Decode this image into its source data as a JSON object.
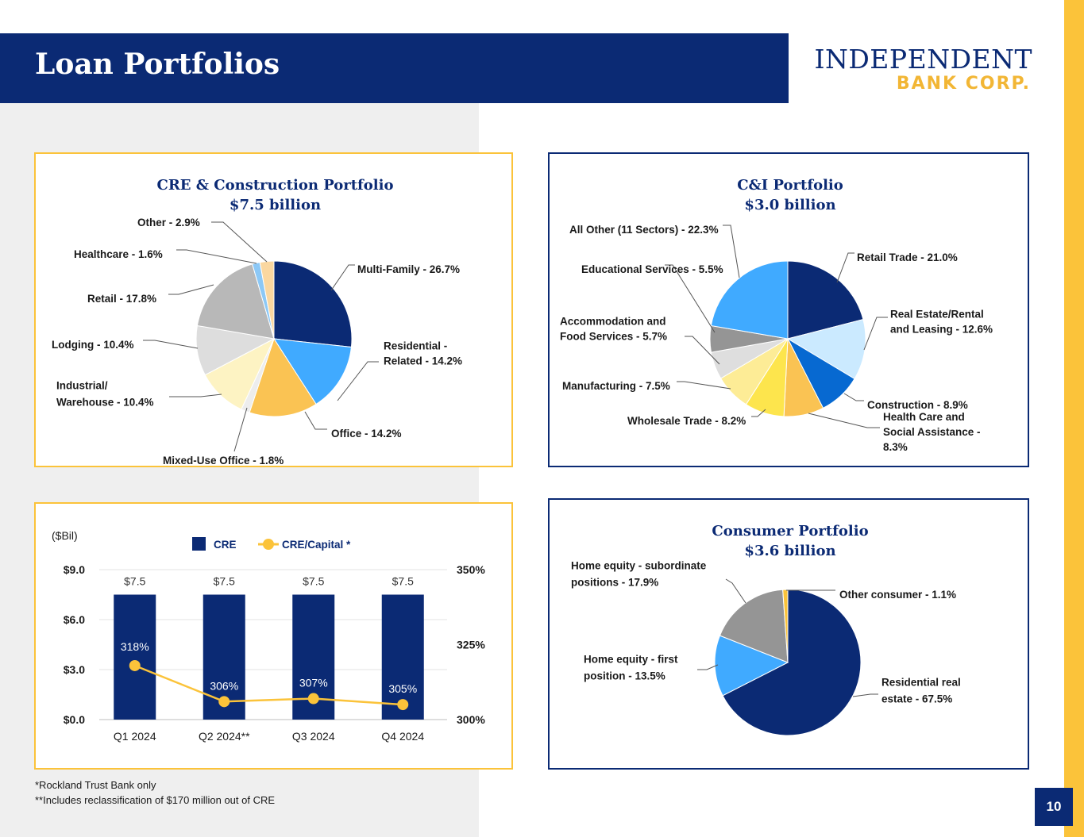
{
  "header": {
    "title": "Loan Portfolios"
  },
  "logo": {
    "line1": "INDEPENDENT",
    "line2": "BANK CORP."
  },
  "colors": {
    "navy": "#0b2a74",
    "gold": "#fbc33a"
  },
  "chart_data": [
    {
      "type": "pie",
      "title": "CRE & Construction Portfolio",
      "subtitle": "$7.5 billion",
      "slices": [
        {
          "label": "Multi-Family - 26.7%",
          "value": 26.7,
          "color": "#0b2a74"
        },
        {
          "label": "Residential - Related - 14.2%",
          "lines": [
            "Residential -",
            "Related - 14.2%"
          ],
          "value": 14.2,
          "color": "#40aaff"
        },
        {
          "label": "Office - 14.2%",
          "value": 14.2,
          "color": "#fac353"
        },
        {
          "label": "Mixed-Use Office - 1.8%",
          "value": 1.8,
          "color": "#ededed"
        },
        {
          "label": "Industrial/ Warehouse - 10.4%",
          "lines": [
            "Industrial/",
            "Warehouse - 10.4%"
          ],
          "value": 10.4,
          "color": "#fdf3c3"
        },
        {
          "label": "Lodging - 10.4%",
          "value": 10.4,
          "color": "#dddddd"
        },
        {
          "label": "Retail - 17.8%",
          "value": 17.8,
          "color": "#b8b8b8"
        },
        {
          "label": "Healthcare - 1.6%",
          "value": 1.6,
          "color": "#8cc8f6"
        },
        {
          "label": "Other - 2.9%",
          "value": 2.9,
          "color": "#fad7a0"
        }
      ]
    },
    {
      "type": "pie",
      "title": "C&I Portfolio",
      "subtitle": "$3.0 billion",
      "slices": [
        {
          "label": "Retail Trade - 21.0%",
          "value": 21.0,
          "color": "#0b2a74"
        },
        {
          "label": "Real Estate/Rental and Leasing - 12.6%",
          "lines": [
            "Real Estate/Rental",
            "and Leasing - 12.6%"
          ],
          "value": 12.6,
          "color": "#cbeaff"
        },
        {
          "label": "Construction - 8.9%",
          "value": 8.9,
          "color": "#0769d1"
        },
        {
          "label": "Health Care and Social Assistance - 8.3%",
          "lines": [
            "Health Care and",
            "Social Assistance -",
            "8.3%"
          ],
          "value": 8.3,
          "color": "#fac353"
        },
        {
          "label": "Wholesale Trade - 8.2%",
          "value": 8.2,
          "color": "#fde54d"
        },
        {
          "label": "Manufacturing - 7.5%",
          "value": 7.5,
          "color": "#fdec96"
        },
        {
          "label": "Accommodation and Food Services - 5.7%",
          "lines": [
            "Accommodation and",
            "Food Services - 5.7%"
          ],
          "value": 5.7,
          "color": "#dedede"
        },
        {
          "label": "Educational Services - 5.5%",
          "value": 5.5,
          "color": "#959595"
        },
        {
          "label": "All Other (11 Sectors) - 22.3%",
          "value": 22.3,
          "color": "#40aaff"
        }
      ]
    },
    {
      "type": "bar",
      "ylabel": "($Bil)",
      "categories": [
        "Q1 2024",
        "Q2 2024**",
        "Q3 2024",
        "Q4 2024"
      ],
      "series": [
        {
          "name": "CRE",
          "type": "bar",
          "axis": "left",
          "values": [
            7.5,
            7.5,
            7.5,
            7.5
          ],
          "labels": [
            "$7.5",
            "$7.5",
            "$7.5",
            "$7.5"
          ],
          "color": "#0b2a74"
        },
        {
          "name": "CRE/Capital *",
          "type": "line",
          "axis": "right",
          "values": [
            318,
            306,
            307,
            305
          ],
          "labels": [
            "318%",
            "306%",
            "307%",
            "305%"
          ],
          "color": "#fbc33a"
        }
      ],
      "ylim": [
        0,
        9
      ],
      "yticks": [
        "$0.0",
        "$3.0",
        "$6.0",
        "$9.0"
      ],
      "y2lim": [
        300,
        350
      ],
      "y2ticks": [
        "300%",
        "325%",
        "350%"
      ],
      "grid": true,
      "legend": "top"
    },
    {
      "type": "pie",
      "title": "Consumer Portfolio",
      "subtitle": "$3.6 billion",
      "slices": [
        {
          "label": "Residential real estate - 67.5%",
          "lines": [
            "Residential real",
            "estate - 67.5%"
          ],
          "value": 67.5,
          "color": "#0b2a74"
        },
        {
          "label": "Home equity - first position - 13.5%",
          "lines": [
            "Home equity - first",
            "position - 13.5%"
          ],
          "value": 13.5,
          "color": "#40aaff"
        },
        {
          "label": "Home equity - subordinate positions - 17.9%",
          "lines": [
            "Home equity - subordinate",
            "positions - 17.9%"
          ],
          "value": 17.9,
          "color": "#959595"
        },
        {
          "label": "Other consumer - 1.1%",
          "value": 1.1,
          "color": "#fbc33a"
        }
      ]
    }
  ],
  "footnotes": [
    "*Rockland Trust Bank only",
    "**Includes reclassification of $170 million out of CRE"
  ],
  "page_number": "10"
}
